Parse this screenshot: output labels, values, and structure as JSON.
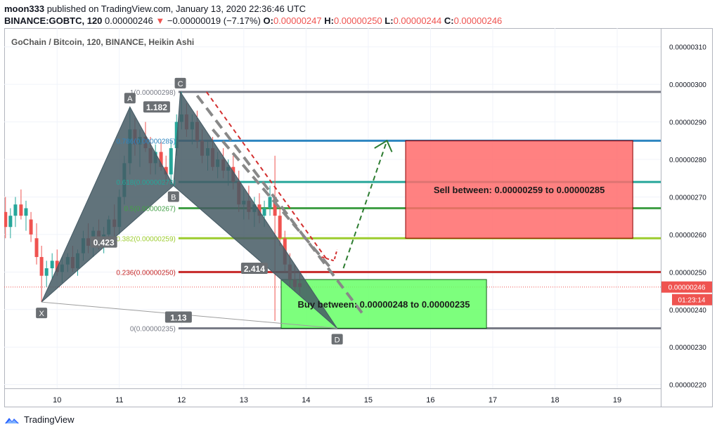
{
  "header": {
    "author": "moon333",
    "published": "published on TradingView.com, January 13, 2020 22:36:46 UTC",
    "symbol": "BINANCE:GOBTC, 120",
    "last": "0.00000246",
    "change": "−0.00000019 (−7.17%)",
    "o_label": "O:",
    "o": "0.00000247",
    "h_label": "H:",
    "h": "0.00000250",
    "l_label": "L:",
    "l": "0.00000244",
    "c_label": "C:",
    "c": "0.00000246"
  },
  "chart_title": "GoChain / Bitcoin, 120, BINANCE, Heikin Ashi",
  "footer": {
    "brand": "TradingView"
  },
  "colors": {
    "up": "#26a69a",
    "down": "#ef5350",
    "harmonic": "#455a64",
    "sell_zone": "#ff6b6b",
    "buy_zone": "#66ff66"
  },
  "chart_data": {
    "type": "candlestick",
    "x_ticks": [
      "10",
      "11",
      "12",
      "13",
      "14",
      "15",
      "16",
      "17",
      "18",
      "19"
    ],
    "y_ticks": [
      "0.00000220",
      "0.00000230",
      "0.00000240",
      "0.00000250",
      "0.00000260",
      "0.00000270",
      "0.00000280",
      "0.00000290",
      "0.00000300",
      "0.00000310"
    ],
    "y_range": [
      219,
      315
    ],
    "x_range": [
      9.15,
      19.7
    ],
    "last_price_label": "0.00000246",
    "last_price": 246,
    "countdown": "01:23:14",
    "fib_levels": [
      {
        "ratio": "1",
        "label": "1(0.00000298)",
        "value": 298,
        "color": "#787b86"
      },
      {
        "ratio": "0.786",
        "label": "0.786(0.00000285)",
        "value": 285,
        "color": "#2e86c1"
      },
      {
        "ratio": "0.618",
        "label": "0.618(0.00000274)",
        "value": 274,
        "color": "#26a69a"
      },
      {
        "ratio": "0.5",
        "label": "0.5(0.00000267)",
        "value": 267,
        "color": "#43a047"
      },
      {
        "ratio": "0.382",
        "label": "0.382(0.00000259)",
        "value": 259,
        "color": "#9ccc2e"
      },
      {
        "ratio": "0.236",
        "label": "0.236(0.00000250)",
        "value": 250,
        "color": "#c62828"
      },
      {
        "ratio": "0",
        "label": "0(0.00000235)",
        "value": 235,
        "color": "#787b86"
      }
    ],
    "harmonic_points": [
      {
        "name": "X",
        "x": 9.75,
        "y": 242
      },
      {
        "name": "A",
        "x": 11.17,
        "y": 294
      },
      {
        "name": "B",
        "x": 11.87,
        "y": 273
      },
      {
        "name": "C",
        "x": 11.98,
        "y": 298
      },
      {
        "name": "D",
        "x": 14.5,
        "y": 235
      }
    ],
    "harmonic_ratios": [
      {
        "label": "0.423",
        "x": 10.75,
        "y": 258
      },
      {
        "label": "1.182",
        "x": 11.6,
        "y": 294
      },
      {
        "label": "2.414",
        "x": 13.17,
        "y": 251
      },
      {
        "label": "1.13",
        "x": 11.95,
        "y": 238
      }
    ],
    "zones": [
      {
        "label": "Sell between: 0.00000259 to 0.00000285",
        "x0": 15.6,
        "x1": 19.25,
        "y0": 259,
        "y1": 285
      },
      {
        "label": "Buy between: 0.00000248 to 0.00000235",
        "x0": 13.6,
        "x1": 16.9,
        "y0": 235,
        "y1": 248
      }
    ],
    "candles": [
      {
        "x": 9.17,
        "o": 266,
        "h": 270,
        "l": 259,
        "c": 262
      },
      {
        "x": 9.25,
        "o": 262,
        "h": 267,
        "l": 259,
        "c": 265
      },
      {
        "x": 9.33,
        "o": 265,
        "h": 270,
        "l": 262,
        "c": 268
      },
      {
        "x": 9.42,
        "o": 268,
        "h": 272,
        "l": 264,
        "c": 265
      },
      {
        "x": 9.5,
        "o": 265,
        "h": 269,
        "l": 261,
        "c": 267
      },
      {
        "x": 9.58,
        "o": 264,
        "h": 266,
        "l": 258,
        "c": 260
      },
      {
        "x": 9.67,
        "o": 259,
        "h": 263,
        "l": 252,
        "c": 254
      },
      {
        "x": 9.75,
        "o": 254,
        "h": 257,
        "l": 242,
        "c": 249
      },
      {
        "x": 9.83,
        "o": 249,
        "h": 253,
        "l": 246,
        "c": 251
      },
      {
        "x": 9.92,
        "o": 251,
        "h": 255,
        "l": 248,
        "c": 253
      },
      {
        "x": 10.0,
        "o": 253,
        "h": 256,
        "l": 249,
        "c": 250
      },
      {
        "x": 10.08,
        "o": 250,
        "h": 254,
        "l": 247,
        "c": 252
      },
      {
        "x": 10.17,
        "o": 252,
        "h": 255,
        "l": 250,
        "c": 254
      },
      {
        "x": 10.25,
        "o": 254,
        "h": 257,
        "l": 250,
        "c": 251
      },
      {
        "x": 10.33,
        "o": 251,
        "h": 256,
        "l": 249,
        "c": 255
      },
      {
        "x": 10.42,
        "o": 255,
        "h": 261,
        "l": 253,
        "c": 259
      },
      {
        "x": 10.5,
        "o": 259,
        "h": 263,
        "l": 255,
        "c": 257
      },
      {
        "x": 10.58,
        "o": 257,
        "h": 262,
        "l": 254,
        "c": 261
      },
      {
        "x": 10.67,
        "o": 261,
        "h": 264,
        "l": 256,
        "c": 258
      },
      {
        "x": 10.75,
        "o": 258,
        "h": 262,
        "l": 255,
        "c": 260
      },
      {
        "x": 10.83,
        "o": 260,
        "h": 265,
        "l": 258,
        "c": 264
      },
      {
        "x": 10.92,
        "o": 264,
        "h": 268,
        "l": 259,
        "c": 262
      },
      {
        "x": 11.0,
        "o": 262,
        "h": 272,
        "l": 260,
        "c": 270
      },
      {
        "x": 11.08,
        "o": 270,
        "h": 281,
        "l": 268,
        "c": 279
      },
      {
        "x": 11.17,
        "o": 279,
        "h": 294,
        "l": 276,
        "c": 288
      },
      {
        "x": 11.25,
        "o": 288,
        "h": 291,
        "l": 281,
        "c": 284
      },
      {
        "x": 11.33,
        "o": 284,
        "h": 288,
        "l": 278,
        "c": 286
      },
      {
        "x": 11.42,
        "o": 286,
        "h": 290,
        "l": 282,
        "c": 283
      },
      {
        "x": 11.5,
        "o": 283,
        "h": 286,
        "l": 276,
        "c": 279
      },
      {
        "x": 11.58,
        "o": 279,
        "h": 284,
        "l": 276,
        "c": 282
      },
      {
        "x": 11.67,
        "o": 282,
        "h": 285,
        "l": 277,
        "c": 278
      },
      {
        "x": 11.75,
        "o": 278,
        "h": 281,
        "l": 274,
        "c": 276
      },
      {
        "x": 11.83,
        "o": 276,
        "h": 285,
        "l": 273,
        "c": 283
      },
      {
        "x": 11.92,
        "o": 283,
        "h": 292,
        "l": 281,
        "c": 290
      },
      {
        "x": 12.0,
        "o": 290,
        "h": 298,
        "l": 288,
        "c": 292
      },
      {
        "x": 12.08,
        "o": 292,
        "h": 295,
        "l": 286,
        "c": 288
      },
      {
        "x": 12.17,
        "o": 288,
        "h": 292,
        "l": 284,
        "c": 290
      },
      {
        "x": 12.25,
        "o": 290,
        "h": 293,
        "l": 283,
        "c": 285
      },
      {
        "x": 12.33,
        "o": 285,
        "h": 288,
        "l": 279,
        "c": 281
      },
      {
        "x": 12.42,
        "o": 281,
        "h": 285,
        "l": 277,
        "c": 283
      },
      {
        "x": 12.5,
        "o": 283,
        "h": 286,
        "l": 277,
        "c": 278
      },
      {
        "x": 12.58,
        "o": 278,
        "h": 282,
        "l": 275,
        "c": 280
      },
      {
        "x": 12.67,
        "o": 280,
        "h": 283,
        "l": 275,
        "c": 277
      },
      {
        "x": 12.75,
        "o": 277,
        "h": 280,
        "l": 273,
        "c": 278
      },
      {
        "x": 12.83,
        "o": 278,
        "h": 281,
        "l": 272,
        "c": 274
      },
      {
        "x": 12.92,
        "o": 274,
        "h": 277,
        "l": 266,
        "c": 268
      },
      {
        "x": 13.0,
        "o": 268,
        "h": 272,
        "l": 264,
        "c": 269
      },
      {
        "x": 13.08,
        "o": 269,
        "h": 273,
        "l": 264,
        "c": 266
      },
      {
        "x": 13.17,
        "o": 266,
        "h": 270,
        "l": 262,
        "c": 268
      },
      {
        "x": 13.25,
        "o": 268,
        "h": 271,
        "l": 263,
        "c": 265
      },
      {
        "x": 13.33,
        "o": 265,
        "h": 269,
        "l": 262,
        "c": 267
      },
      {
        "x": 13.42,
        "o": 267,
        "h": 273,
        "l": 265,
        "c": 270
      },
      {
        "x": 13.5,
        "o": 270,
        "h": 281,
        "l": 237,
        "c": 265
      },
      {
        "x": 13.58,
        "o": 265,
        "h": 267,
        "l": 257,
        "c": 259
      },
      {
        "x": 13.66,
        "o": 259,
        "h": 261,
        "l": 250,
        "c": 252
      },
      {
        "x": 13.74,
        "o": 252,
        "h": 255,
        "l": 246,
        "c": 248
      },
      {
        "x": 13.82,
        "o": 248,
        "h": 252,
        "l": 245,
        "c": 246
      },
      {
        "x": 13.9,
        "o": 247,
        "h": 250,
        "l": 244,
        "c": 246
      }
    ]
  }
}
